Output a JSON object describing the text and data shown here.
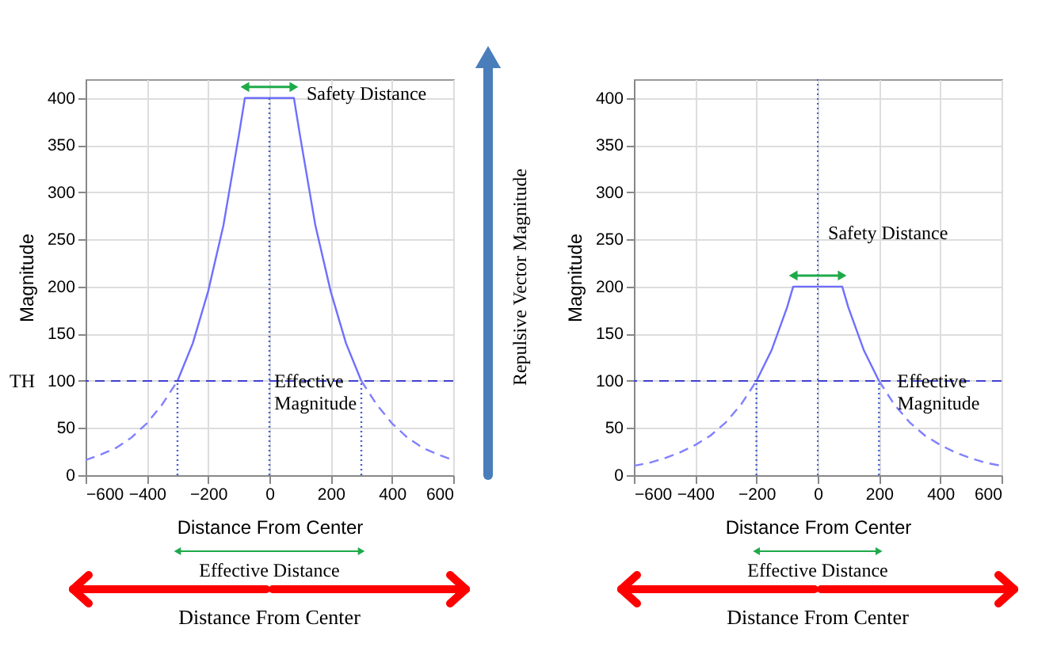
{
  "chart_data": [
    {
      "type": "line",
      "xlabel": "Distance From Center",
      "ylabel": "Magnitude",
      "xlim": [
        -600,
        600
      ],
      "ylim": [
        0,
        420
      ],
      "xticks": [
        -600,
        -400,
        -200,
        0,
        200,
        400,
        600
      ],
      "yticks": [
        0,
        50,
        100,
        150,
        200,
        250,
        300,
        350,
        400
      ],
      "grid": true,
      "series": [
        {
          "color": "#6f6fff",
          "line_style": "solid",
          "x": [
            -300,
            -250,
            -200,
            -150,
            -100,
            -80,
            80,
            100,
            150,
            200,
            250,
            300
          ],
          "values": [
            100,
            140,
            195,
            265,
            360,
            400,
            400,
            360,
            265,
            195,
            140,
            100
          ]
        },
        {
          "color": "#8080ff",
          "line_style": "dashed",
          "x": [
            -600,
            -550,
            -500,
            -450,
            -400,
            -350,
            -300
          ],
          "values": [
            16,
            22,
            29,
            40,
            55,
            75,
            100
          ]
        },
        {
          "color": "#8080ff",
          "line_style": "dashed",
          "x": [
            300,
            350,
            400,
            450,
            500,
            550,
            600
          ],
          "values": [
            100,
            75,
            55,
            40,
            29,
            22,
            16
          ]
        },
        {
          "color": "#4060d0",
          "line_style": "dotted",
          "x": [
            -300,
            -300
          ],
          "values": [
            0,
            100
          ]
        },
        {
          "color": "#4060d0",
          "line_style": "dotted",
          "x": [
            300,
            300
          ],
          "values": [
            0,
            100
          ]
        },
        {
          "color": "#4060d0",
          "line_style": "dotted",
          "x": [
            0,
            0
          ],
          "values": [
            0,
            400
          ]
        }
      ],
      "ref_lines": [
        {
          "axis": "y",
          "value": 100,
          "color": "#4040d0",
          "line_style": "dashed"
        }
      ],
      "annotations": [
        "Safety Distance",
        "TH",
        {
          "text": "Effective\nMagnitude",
          "x": 16,
          "y": 100
        },
        "Effective Distance",
        "Distance From Center",
        "Repulsive Vector Magnitude"
      ]
    },
    {
      "type": "line",
      "xlabel": "Distance From Center",
      "ylabel": "Magnitude",
      "xlim": [
        -600,
        600
      ],
      "ylim": [
        0,
        420
      ],
      "xticks": [
        -600,
        -400,
        -200,
        0,
        200,
        400,
        600
      ],
      "yticks": [
        0,
        50,
        100,
        150,
        200,
        250,
        300,
        350,
        400
      ],
      "grid": true,
      "series": [
        {
          "color": "#6f6fff",
          "line_style": "solid",
          "x": [
            -200,
            -150,
            -100,
            -80,
            80,
            100,
            150,
            200
          ],
          "values": [
            100,
            133,
            178,
            200,
            200,
            178,
            133,
            100
          ]
        },
        {
          "color": "#8080ff",
          "line_style": "dashed",
          "x": [
            -600,
            -550,
            -500,
            -450,
            -400,
            -350,
            -300,
            -250,
            -200
          ],
          "values": [
            10,
            13,
            18,
            24,
            32,
            42,
            56,
            75,
            100
          ]
        },
        {
          "color": "#8080ff",
          "line_style": "dashed",
          "x": [
            200,
            250,
            300,
            350,
            400,
            450,
            500,
            550,
            600
          ],
          "values": [
            100,
            75,
            56,
            42,
            32,
            24,
            18,
            13,
            10
          ]
        },
        {
          "color": "#4060d0",
          "line_style": "dotted",
          "x": [
            -200,
            -200
          ],
          "values": [
            0,
            100
          ]
        },
        {
          "color": "#4060d0",
          "line_style": "dotted",
          "x": [
            200,
            200
          ],
          "values": [
            0,
            100
          ]
        }
      ],
      "ref_lines": [
        {
          "axis": "y",
          "value": 100,
          "color": "#4040d0",
          "line_style": "dashed"
        },
        {
          "axis": "x",
          "value": 0,
          "color": "#4060d0",
          "line_style": "dotted"
        }
      ],
      "annotations": [
        "Safety Distance",
        {
          "text": "Effective\nMagnitude",
          "x": 260,
          "y": 100
        },
        "Effective Distance",
        "Distance From Center"
      ]
    }
  ]
}
